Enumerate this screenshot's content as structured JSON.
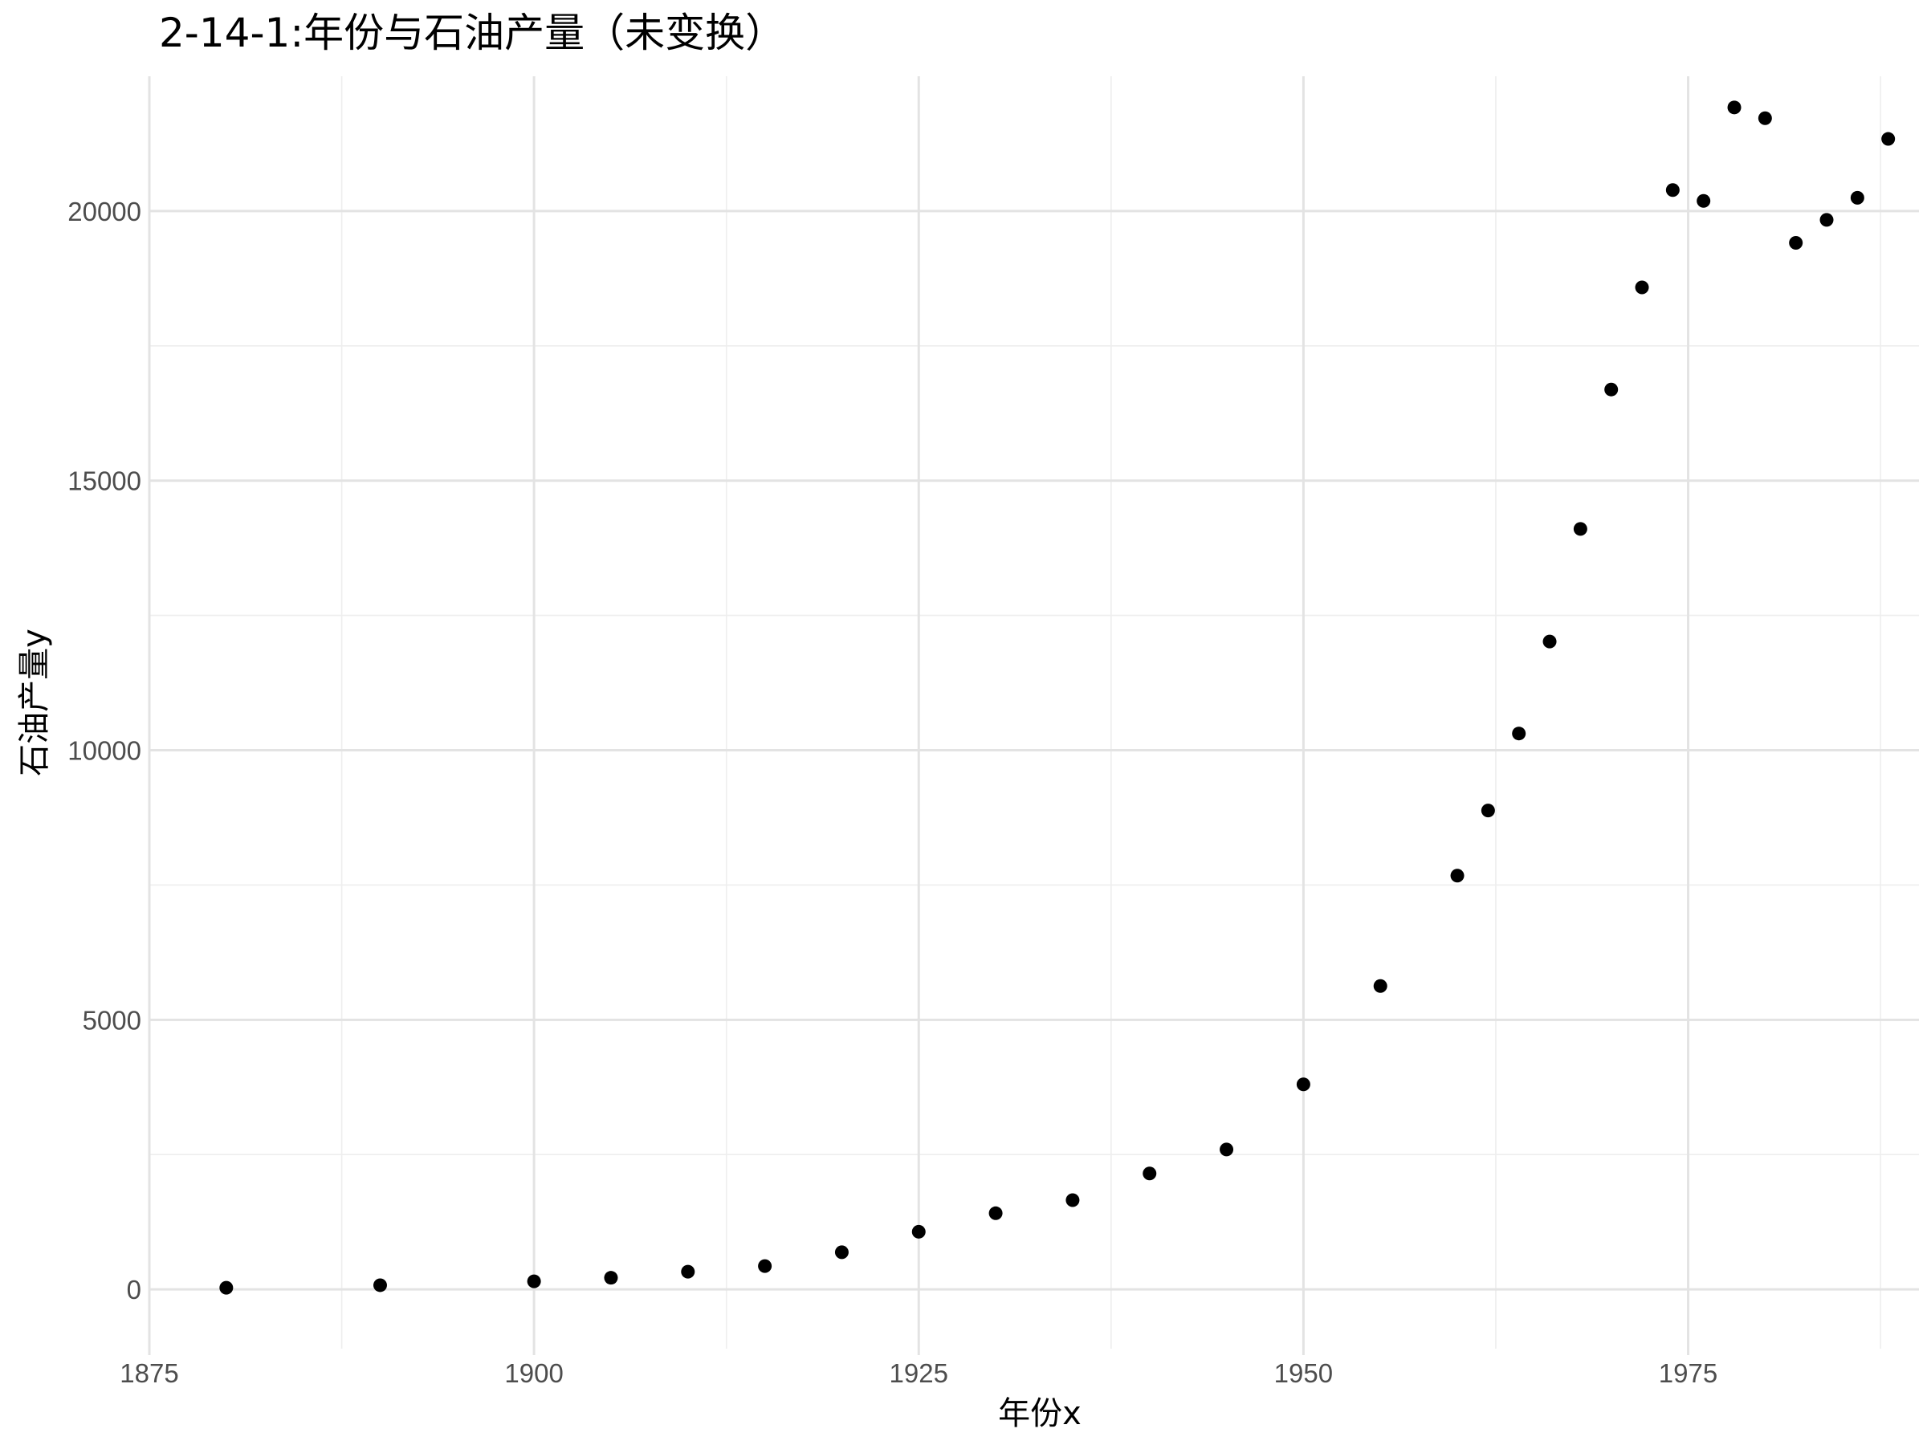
{
  "chart_data": {
    "type": "scatter",
    "title": "2-14-1:年份与石油产量（未变换）",
    "xlabel": "年份x",
    "ylabel": "石油产量y",
    "xlim": [
      1875,
      1990
    ],
    "ylim": [
      -1100,
      22500
    ],
    "x_ticks": [
      1875,
      1900,
      1925,
      1950,
      1975
    ],
    "y_ticks": [
      0,
      5000,
      10000,
      15000,
      20000
    ],
    "grid": true,
    "point_color": "#000000",
    "grid_color": "#e3e3e3",
    "points": [
      {
        "x": 1880,
        "y": 30
      },
      {
        "x": 1890,
        "y": 77
      },
      {
        "x": 1900,
        "y": 149
      },
      {
        "x": 1905,
        "y": 215
      },
      {
        "x": 1910,
        "y": 328
      },
      {
        "x": 1915,
        "y": 432
      },
      {
        "x": 1920,
        "y": 689
      },
      {
        "x": 1925,
        "y": 1069
      },
      {
        "x": 1930,
        "y": 1412
      },
      {
        "x": 1935,
        "y": 1655
      },
      {
        "x": 1940,
        "y": 2150
      },
      {
        "x": 1945,
        "y": 2595
      },
      {
        "x": 1950,
        "y": 3803
      },
      {
        "x": 1955,
        "y": 5626
      },
      {
        "x": 1960,
        "y": 7674
      },
      {
        "x": 1962,
        "y": 8882
      },
      {
        "x": 1964,
        "y": 10310
      },
      {
        "x": 1966,
        "y": 12016
      },
      {
        "x": 1968,
        "y": 14104
      },
      {
        "x": 1970,
        "y": 16690
      },
      {
        "x": 1972,
        "y": 18584
      },
      {
        "x": 1974,
        "y": 20389
      },
      {
        "x": 1976,
        "y": 20188
      },
      {
        "x": 1978,
        "y": 21922
      },
      {
        "x": 1980,
        "y": 21722
      },
      {
        "x": 1982,
        "y": 19411
      },
      {
        "x": 1984,
        "y": 19837
      },
      {
        "x": 1986,
        "y": 20246
      },
      {
        "x": 1988,
        "y": 21338
      }
    ]
  }
}
